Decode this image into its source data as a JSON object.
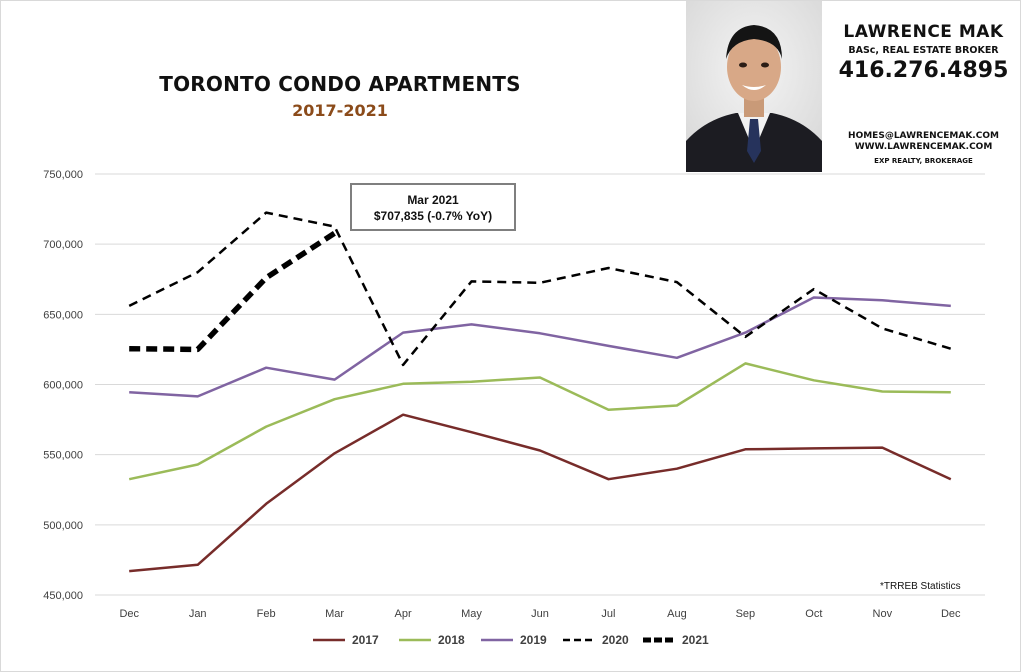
{
  "header": {
    "title": "TORONTO CONDO APARTMENTS",
    "subtitle": "2017-2021"
  },
  "agent": {
    "name": "LAWRENCE MAK",
    "credentials": "BASc, REAL ESTATE BROKER",
    "phone": "416.276.4895",
    "email": "HOMES@LAWRENCEMAK.COM",
    "website": "WWW.LAWRENCEMAK.COM",
    "brokerage": "EXP REALTY, BROKERAGE"
  },
  "callout": {
    "line1": "Mar 2021",
    "line2": "$707,835  (-0.7%  YoY)"
  },
  "source_note": "*TRREB Statistics",
  "chart_data": {
    "type": "line",
    "categories": [
      "Dec",
      "Jan",
      "Feb",
      "Mar",
      "Apr",
      "May",
      "Jun",
      "Jul",
      "Aug",
      "Sep",
      "Oct",
      "Nov",
      "Dec"
    ],
    "ylim": [
      450000,
      750000
    ],
    "yticks": [
      450000,
      500000,
      550000,
      600000,
      650000,
      700000,
      750000
    ],
    "ytick_labels": [
      "450,000",
      "500,000",
      "550,000",
      "600,000",
      "650,000",
      "700,000",
      "750,000"
    ],
    "grid": true,
    "legend_position": "bottom",
    "series": [
      {
        "name": "2017",
        "color": "#772c2a",
        "style": "solid",
        "width": 2.5,
        "values": [
          467000,
          471500,
          515000,
          551000,
          578500,
          566000,
          553000,
          532500,
          540000,
          553800,
          554500,
          555000,
          532500
        ]
      },
      {
        "name": "2018",
        "color": "#9bbb59",
        "style": "solid",
        "width": 2.5,
        "values": [
          532500,
          543000,
          570000,
          589500,
          600500,
          602000,
          605000,
          582000,
          585000,
          615000,
          603000,
          595000,
          594500
        ]
      },
      {
        "name": "2019",
        "color": "#8064a2",
        "style": "solid",
        "width": 2.5,
        "values": [
          594500,
          591500,
          612000,
          603500,
          637000,
          642800,
          636500,
          627500,
          619000,
          637000,
          662000,
          660000,
          656000
        ]
      },
      {
        "name": "2020",
        "color": "#000000",
        "style": "dashed",
        "width": 2.5,
        "values": [
          656000,
          680000,
          722500,
          712500,
          614000,
          673500,
          672500,
          683000,
          673000,
          634000,
          668000,
          640000,
          625500
        ]
      },
      {
        "name": "2021",
        "color": "#000000",
        "style": "dashed-bold",
        "width": 5.5,
        "values": [
          625500,
          625000,
          676000,
          707835,
          null,
          null,
          null,
          null,
          null,
          null,
          null,
          null,
          null
        ]
      }
    ]
  }
}
